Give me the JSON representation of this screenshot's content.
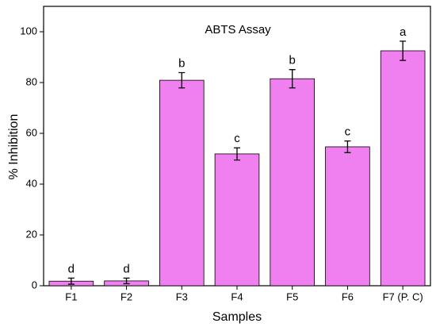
{
  "chart_data": {
    "type": "bar",
    "title": "ABTS Assay",
    "x_label": "Samples",
    "y_label": "% Inhibition",
    "categories": [
      "F1",
      "F2",
      "F3",
      "F4",
      "F5",
      "F6",
      "F7 (P. C)"
    ],
    "series": [
      {
        "color": "#f07ff0",
        "values": [
          1.8,
          1.9,
          80.9,
          51.9,
          81.5,
          54.7,
          92.5
        ],
        "errors": [
          1.2,
          1.1,
          3.0,
          2.4,
          3.6,
          2.3,
          3.8
        ],
        "annotations": [
          "d",
          "d",
          "b",
          "c",
          "b",
          "c",
          "a"
        ]
      }
    ],
    "ylim": [
      0,
      110
    ],
    "yticks": [
      0,
      20,
      40,
      60,
      80,
      100
    ]
  }
}
